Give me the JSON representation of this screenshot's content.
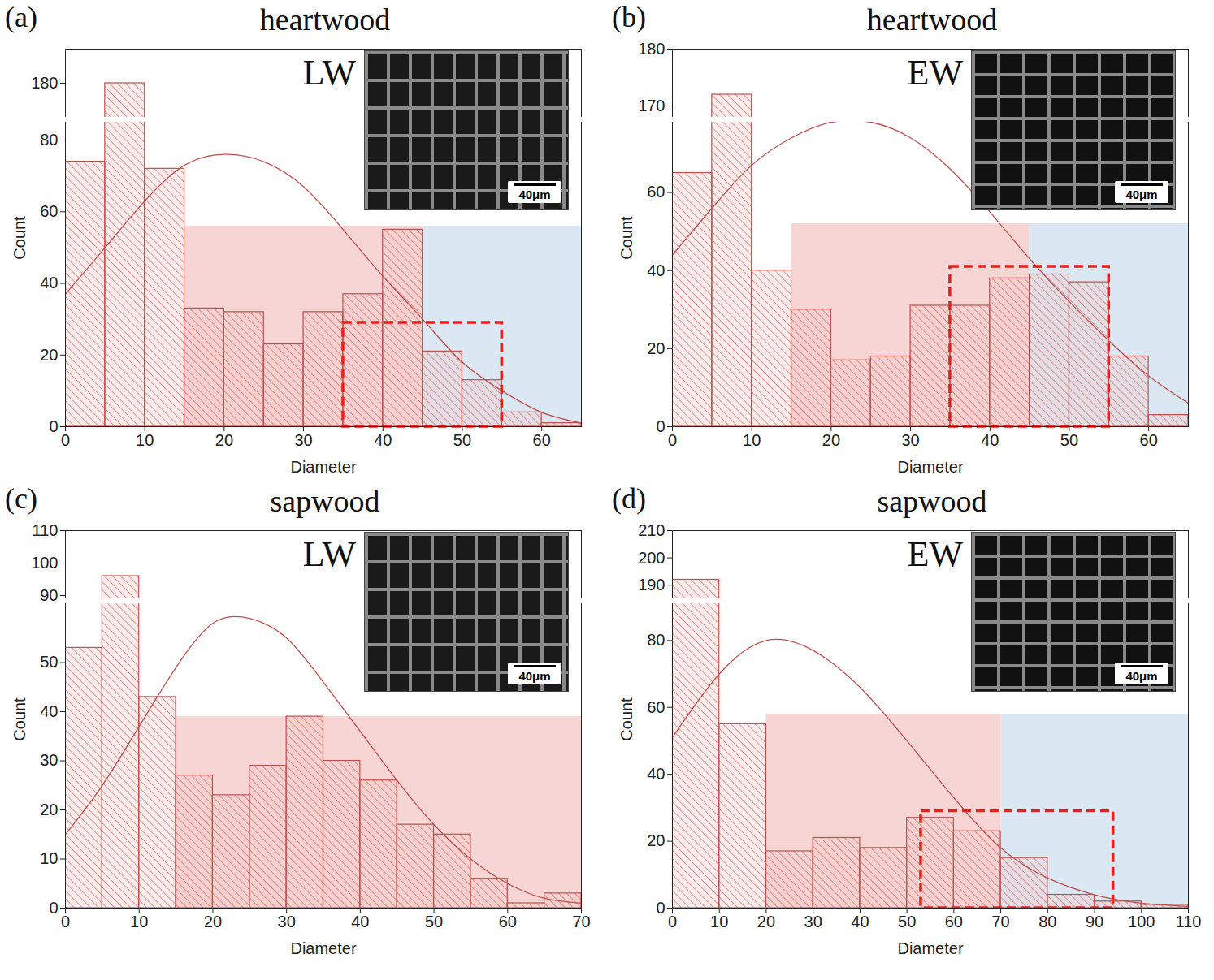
{
  "chart_data": [
    {
      "type": "histogram",
      "panel": "(a)",
      "title": "heartwood",
      "inset_label": "LW",
      "scale_bar": "40μm",
      "x_label": "Diameter",
      "y_label": "Count",
      "color": "#c0504d",
      "bins": [
        0,
        5,
        10,
        15,
        20,
        25,
        30,
        35,
        40,
        45,
        50,
        55,
        60,
        65
      ],
      "values": [
        74,
        180,
        72,
        33,
        32,
        23,
        32,
        37,
        55,
        21,
        13,
        4,
        1
      ],
      "xlim": [
        0,
        65
      ],
      "xticks": [
        0,
        10,
        20,
        30,
        40,
        50,
        60
      ],
      "ylim": [
        0,
        190
      ],
      "yticks": [
        0,
        20,
        40,
        60,
        80,
        180
      ],
      "y_break": [
        85,
        170
      ],
      "fit": {
        "x": [
          0,
          5,
          10,
          15,
          20,
          25,
          30,
          35,
          40,
          45,
          50,
          55,
          60,
          65
        ],
        "y": [
          37,
          50,
          63,
          73,
          76,
          74,
          67,
          55,
          42,
          30,
          18,
          10,
          4,
          1
        ]
      },
      "regions": [
        {
          "x": [
            15,
            45
          ],
          "y": [
            0,
            56
          ],
          "color": "#f8d5d5"
        },
        {
          "x": [
            45,
            65
          ],
          "y": [
            0,
            56
          ],
          "color": "#dbe8f3"
        }
      ],
      "highlight_box": {
        "x": [
          35,
          55
        ],
        "y": [
          0,
          29
        ],
        "color": "#e8201c",
        "line_style": "dashed"
      }
    },
    {
      "type": "histogram",
      "panel": "(b)",
      "title": "heartwood",
      "inset_label": "EW",
      "scale_bar": "40μm",
      "x_label": "Diameter",
      "y_label": "Count",
      "color": "#c0504d",
      "bins": [
        0,
        5,
        10,
        15,
        20,
        25,
        30,
        35,
        40,
        45,
        50,
        55,
        60,
        65
      ],
      "values": [
        65,
        172,
        40,
        30,
        17,
        18,
        31,
        31,
        38,
        39,
        37,
        18,
        3
      ],
      "xlim": [
        0,
        65
      ],
      "xticks": [
        0,
        10,
        20,
        30,
        40,
        50,
        60
      ],
      "ylim": [
        0,
        180
      ],
      "yticks": [
        0,
        20,
        40,
        60,
        170,
        180
      ],
      "y_break": [
        78,
        168
      ],
      "fit": {
        "x": [
          0,
          5,
          10,
          15,
          20,
          25,
          30,
          35,
          40,
          45,
          50,
          55,
          60,
          65
        ],
        "y": [
          44,
          56,
          67,
          74,
          78,
          78,
          74,
          66,
          55,
          43,
          32,
          22,
          13,
          6
        ]
      },
      "regions": [
        {
          "x": [
            15,
            45
          ],
          "y": [
            0,
            52
          ],
          "color": "#f8d5d5"
        },
        {
          "x": [
            45,
            65
          ],
          "y": [
            0,
            52
          ],
          "color": "#dbe8f3"
        }
      ],
      "highlight_box": {
        "x": [
          35,
          55
        ],
        "y": [
          0,
          41
        ],
        "color": "#e8201c",
        "line_style": "dashed"
      }
    },
    {
      "type": "histogram",
      "panel": "(c)",
      "title": "sapwood",
      "inset_label": "LW",
      "scale_bar": "40μm",
      "x_label": "Diameter",
      "y_label": "Count",
      "color": "#c0504d",
      "bins": [
        0,
        5,
        10,
        15,
        20,
        25,
        30,
        35,
        40,
        45,
        50,
        55,
        60,
        65,
        70
      ],
      "values": [
        53,
        96,
        43,
        27,
        23,
        29,
        39,
        30,
        26,
        17,
        15,
        6,
        1,
        3
      ],
      "xlim": [
        0,
        70
      ],
      "xticks": [
        0,
        10,
        20,
        30,
        40,
        50,
        60,
        70
      ],
      "ylim": [
        0,
        110
      ],
      "yticks": [
        0,
        10,
        20,
        30,
        40,
        50,
        90,
        100,
        110
      ],
      "y_break": [
        62,
        89
      ],
      "fit": {
        "x": [
          0,
          5,
          10,
          15,
          20,
          25,
          30,
          35,
          40,
          45,
          50,
          55,
          60,
          65,
          70
        ],
        "y": [
          15,
          25,
          37,
          49,
          58,
          59,
          55,
          46,
          36,
          26,
          17,
          10,
          5,
          2,
          1
        ]
      },
      "regions": [
        {
          "x": [
            15,
            70
          ],
          "y": [
            0,
            39
          ],
          "color": "#f8d5d5"
        }
      ]
    },
    {
      "type": "histogram",
      "panel": "(d)",
      "title": "sapwood",
      "inset_label": "EW",
      "scale_bar": "40μm",
      "x_label": "Diameter",
      "y_label": "Count",
      "color": "#c0504d",
      "bins": [
        0,
        10,
        20,
        30,
        40,
        50,
        60,
        70,
        80,
        90,
        100,
        110
      ],
      "values": [
        192,
        55,
        17,
        21,
        18,
        27,
        23,
        15,
        4,
        2,
        1
      ],
      "xlim": [
        0,
        110
      ],
      "xticks": [
        0,
        10,
        20,
        30,
        40,
        50,
        60,
        70,
        80,
        90,
        100,
        110
      ],
      "ylim": [
        0,
        210
      ],
      "yticks": [
        0,
        20,
        40,
        60,
        80,
        190,
        200,
        210
      ],
      "y_break": [
        91,
        185
      ],
      "fit": {
        "x": [
          0,
          10,
          20,
          30,
          40,
          50,
          60,
          70,
          80,
          90,
          100,
          110
        ],
        "y": [
          51,
          70,
          80,
          77,
          66,
          50,
          33,
          18,
          9,
          4,
          1.5,
          0.5
        ]
      },
      "regions": [
        {
          "x": [
            20,
            70
          ],
          "y": [
            0,
            58
          ],
          "color": "#f8d5d5"
        },
        {
          "x": [
            70,
            110
          ],
          "y": [
            0,
            58
          ],
          "color": "#dbe8f3"
        }
      ],
      "highlight_box": {
        "x": [
          53,
          94
        ],
        "y": [
          0,
          29
        ],
        "color": "#e8201c",
        "line_style": "dashed"
      }
    }
  ]
}
